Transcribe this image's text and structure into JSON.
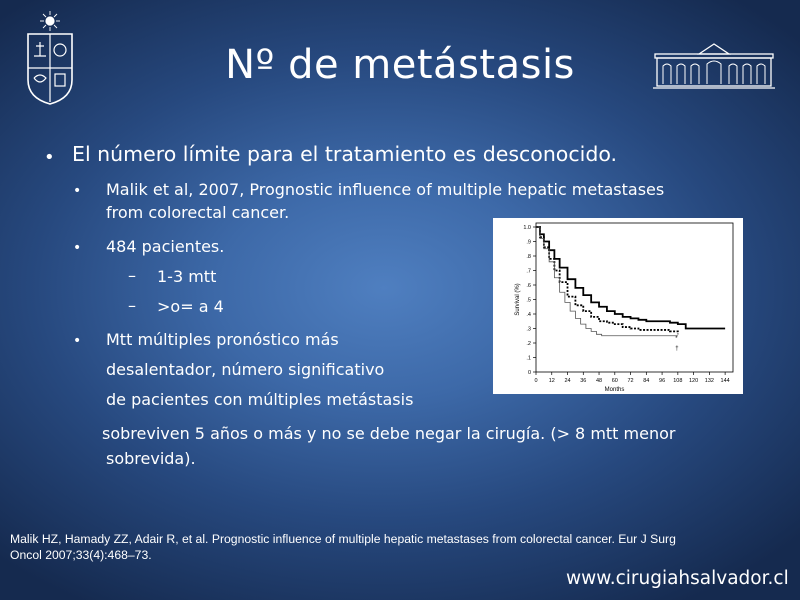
{
  "slide": {
    "title": "Nº de metástasis",
    "bullet1": "El número límite para el tratamiento es desconocido.",
    "sub1_line1": "Malik et al, 2007, Prognostic influence of multiple hepatic metastases",
    "sub1_line2": "from colorectal cancer.",
    "sub2": "484 pacientes.",
    "dash1": "1-3 mtt",
    "dash2": ">o= a 4",
    "sub3_line1": "Mtt múltiples pronóstico más",
    "sub3_line2": "desalentador, número significativo",
    "sub3_line3": "de pacientes con múltiples metástasis",
    "sub3_line4": "sobreviven 5 años o más y no se debe negar la cirugía. (> 8  mtt menor",
    "sub3_line5": "sobrevida).",
    "reference_line1": "Malik HZ, Hamady ZZ, Adair R, et al. Prognostic influence of multiple hepatic metastases from colorectal cancer. Eur J Surg",
    "reference_line2": "Oncol 2007;33(4):468–73.",
    "website": "www.cirugiahsalvador.cl",
    "bullet_glyph": "•",
    "dash_glyph": "–",
    "icons": [
      "university-crest-icon",
      "building-facade-icon"
    ]
  },
  "chart_data": {
    "type": "line",
    "xlabel": "Months",
    "ylabel": "Survival (%)",
    "xlim": [
      0,
      150
    ],
    "ylim": [
      0,
      1.0
    ],
    "xticks": [
      "0",
      "12",
      "24",
      "36",
      "48",
      "60",
      "72",
      "84",
      "96",
      "108",
      "120",
      "132",
      "144"
    ],
    "yticks": [
      "1.0",
      ".9",
      ".8",
      ".7",
      ".6",
      ".5",
      ".4",
      ".3",
      ".2",
      ".1",
      "0"
    ],
    "series": [
      {
        "style": "solid-thick",
        "color": "#000000",
        "x": [
          0,
          3,
          6,
          10,
          14,
          18,
          24,
          30,
          36,
          42,
          48,
          54,
          60,
          66,
          72,
          78,
          84,
          90,
          96,
          102,
          108,
          114,
          120,
          126,
          132,
          144
        ],
        "y": [
          1.0,
          0.95,
          0.9,
          0.84,
          0.78,
          0.72,
          0.64,
          0.58,
          0.53,
          0.48,
          0.45,
          0.42,
          0.4,
          0.38,
          0.37,
          0.36,
          0.35,
          0.35,
          0.35,
          0.34,
          0.33,
          0.3,
          0.3,
          0.3,
          0.3,
          0.3
        ]
      },
      {
        "style": "dashed-thick",
        "color": "#000000",
        "x": [
          0,
          3,
          6,
          10,
          14,
          18,
          24,
          30,
          36,
          42,
          48,
          54,
          60,
          66,
          72,
          78,
          84,
          90,
          96,
          102,
          108
        ],
        "y": [
          1.0,
          0.93,
          0.86,
          0.78,
          0.7,
          0.62,
          0.52,
          0.46,
          0.42,
          0.38,
          0.35,
          0.34,
          0.33,
          0.31,
          0.3,
          0.29,
          0.29,
          0.29,
          0.29,
          0.28,
          0.26
        ]
      },
      {
        "style": "thin",
        "color": "#555555",
        "x": [
          0,
          3,
          6,
          10,
          14,
          18,
          22,
          26,
          30,
          34,
          38,
          42,
          46,
          50,
          56,
          62,
          72,
          84,
          96,
          108
        ],
        "y": [
          1.0,
          0.92,
          0.85,
          0.76,
          0.65,
          0.55,
          0.48,
          0.42,
          0.37,
          0.33,
          0.3,
          0.28,
          0.26,
          0.25,
          0.25,
          0.25,
          0.25,
          0.25,
          0.25,
          0.25
        ]
      }
    ],
    "annotations": [
      "*",
      "†"
    ]
  }
}
